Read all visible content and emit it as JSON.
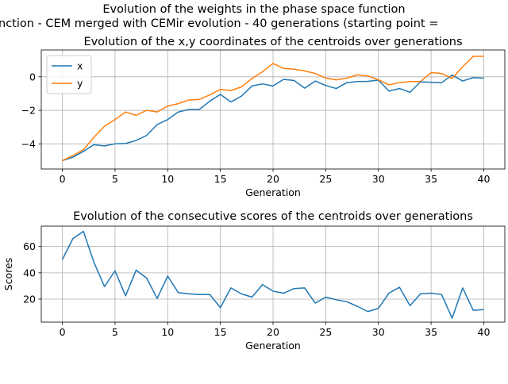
{
  "figure": {
    "suptitle_line1": "Evolution of the weights in the phase space  function",
    "suptitle_line2": "nction - CEM merged with CEMir evolution - 40 generations (starting point = "
  },
  "colors": {
    "x": "#1f77b4",
    "y": "#ff7f0e",
    "grid": "#b0b0b0"
  },
  "chart_data": [
    {
      "type": "line",
      "title": "Evolution of the x,y coordinates of the centroids over generations",
      "xlabel": "Generation",
      "ylabel": "",
      "xlim": [
        -2,
        42
      ],
      "ylim": [
        -5.5,
        1.6
      ],
      "xticks": [
        0,
        5,
        10,
        15,
        20,
        25,
        30,
        35,
        40
      ],
      "yticks": [
        -4,
        -2,
        0
      ],
      "grid": true,
      "legend": "upper-left",
      "x": [
        0,
        1,
        2,
        3,
        4,
        5,
        6,
        7,
        8,
        9,
        10,
        11,
        12,
        13,
        14,
        15,
        16,
        17,
        18,
        19,
        20,
        21,
        22,
        23,
        24,
        25,
        26,
        27,
        28,
        29,
        30,
        31,
        32,
        33,
        34,
        35,
        36,
        37,
        38,
        39,
        40
      ],
      "series": [
        {
          "name": "x",
          "color": "#1f77b4",
          "values": [
            -5.0,
            -4.8,
            -4.45,
            -4.05,
            -4.12,
            -4.0,
            -3.98,
            -3.8,
            -3.5,
            -2.85,
            -2.55,
            -2.1,
            -1.95,
            -1.95,
            -1.45,
            -1.05,
            -1.5,
            -1.15,
            -0.55,
            -0.42,
            -0.55,
            -0.15,
            -0.22,
            -0.68,
            -0.25,
            -0.52,
            -0.7,
            -0.35,
            -0.28,
            -0.27,
            -0.2,
            -0.85,
            -0.7,
            -0.92,
            -0.3,
            -0.33,
            -0.35,
            0.1,
            -0.25,
            -0.05,
            -0.08
          ]
        },
        {
          "name": "y",
          "color": "#ff7f0e",
          "values": [
            -5.0,
            -4.7,
            -4.35,
            -3.6,
            -2.95,
            -2.55,
            -2.1,
            -2.3,
            -2.0,
            -2.1,
            -1.75,
            -1.6,
            -1.38,
            -1.35,
            -1.08,
            -0.75,
            -0.82,
            -0.6,
            -0.1,
            0.3,
            0.8,
            0.5,
            0.45,
            0.35,
            0.2,
            -0.08,
            -0.18,
            -0.08,
            0.12,
            0.05,
            -0.18,
            -0.48,
            -0.35,
            -0.28,
            -0.28,
            0.25,
            0.2,
            -0.1,
            0.6,
            1.22,
            1.22
          ]
        }
      ]
    },
    {
      "type": "line",
      "title": "Evolution of the consecutive scores of the centroids over generations",
      "xlabel": "Generation",
      "ylabel": "Scores",
      "xlim": [
        -2,
        42
      ],
      "ylim": [
        2.5,
        75.5
      ],
      "xticks": [
        0,
        5,
        10,
        15,
        20,
        25,
        30,
        35,
        40
      ],
      "yticks": [
        20,
        40,
        60
      ],
      "grid": true,
      "x": [
        0,
        1,
        2,
        3,
        4,
        5,
        6,
        7,
        8,
        9,
        10,
        11,
        12,
        13,
        14,
        15,
        16,
        17,
        18,
        19,
        20,
        21,
        22,
        23,
        24,
        25,
        26,
        27,
        28,
        29,
        30,
        31,
        32,
        33,
        34,
        35,
        36,
        37,
        38,
        39,
        40
      ],
      "series": [
        {
          "name": "",
          "color": "#1f77b4",
          "values": [
            50,
            66,
            71.5,
            48,
            29.5,
            41.5,
            22.5,
            42,
            36,
            20.5,
            37.5,
            25,
            24,
            23.5,
            23.5,
            13.5,
            28.5,
            24,
            21.5,
            31,
            26,
            24.5,
            28,
            28.5,
            17,
            21.5,
            19.5,
            18,
            14.5,
            10.5,
            13,
            24.5,
            29,
            15,
            24,
            24.5,
            23.5,
            5.5,
            28.5,
            11.5,
            12
          ]
        }
      ]
    }
  ]
}
